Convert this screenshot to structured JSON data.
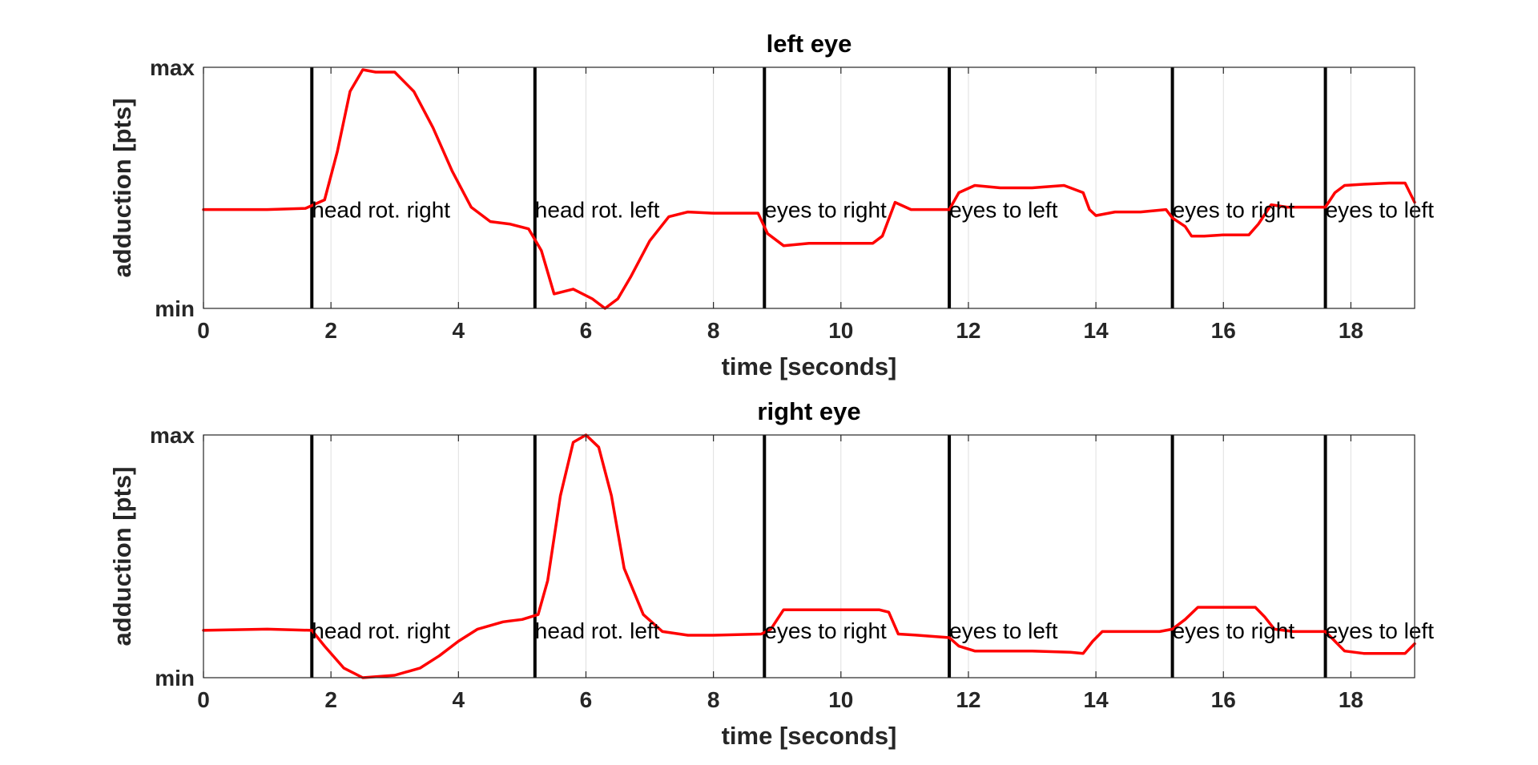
{
  "chart_data": [
    {
      "type": "line",
      "title": "left eye",
      "xlabel": "time [seconds]",
      "ylabel": "adduction [pts]",
      "xlim": [
        0,
        19
      ],
      "ylim": [
        0,
        1
      ],
      "xticks": [
        0,
        2,
        4,
        6,
        8,
        10,
        12,
        14,
        16,
        18
      ],
      "yticks": [
        {
          "value": 0,
          "label": "min"
        },
        {
          "value": 1,
          "label": "max"
        }
      ],
      "grid": "vertical",
      "series": [
        {
          "color": "#ff0000",
          "x": [
            0,
            1.0,
            1.6,
            1.9,
            2.1,
            2.3,
            2.5,
            2.7,
            3.0,
            3.3,
            3.6,
            3.9,
            4.2,
            4.5,
            4.8,
            5.1,
            5.3,
            5.5,
            5.8,
            6.1,
            6.3,
            6.5,
            6.7,
            7.0,
            7.3,
            7.6,
            8.0,
            8.7,
            8.85,
            9.1,
            9.5,
            10.0,
            10.5,
            10.65,
            10.85,
            11.1,
            11.7,
            11.85,
            12.1,
            12.5,
            13.0,
            13.5,
            13.8,
            13.9,
            14.0,
            14.3,
            14.7,
            15.1,
            15.2,
            15.4,
            15.5,
            15.7,
            16.0,
            16.4,
            16.55,
            16.75,
            17.0,
            17.6,
            17.75,
            17.9,
            18.2,
            18.6,
            18.85,
            19.0
          ],
          "y": [
            0.41,
            0.41,
            0.415,
            0.45,
            0.65,
            0.9,
            0.99,
            0.98,
            0.98,
            0.9,
            0.75,
            0.57,
            0.42,
            0.36,
            0.35,
            0.33,
            0.24,
            0.06,
            0.08,
            0.04,
            0.0,
            0.04,
            0.13,
            0.28,
            0.38,
            0.4,
            0.395,
            0.395,
            0.31,
            0.26,
            0.27,
            0.27,
            0.27,
            0.3,
            0.44,
            0.41,
            0.41,
            0.48,
            0.51,
            0.5,
            0.5,
            0.51,
            0.48,
            0.41,
            0.385,
            0.4,
            0.4,
            0.41,
            0.375,
            0.34,
            0.3,
            0.3,
            0.305,
            0.305,
            0.35,
            0.43,
            0.42,
            0.42,
            0.48,
            0.51,
            0.515,
            0.52,
            0.52,
            0.44
          ]
        }
      ],
      "events": [
        {
          "x": 1.7,
          "label": "head rot. right"
        },
        {
          "x": 5.2,
          "label": "head rot. left"
        },
        {
          "x": 8.8,
          "label": "eyes to right"
        },
        {
          "x": 11.7,
          "label": "eyes to left"
        },
        {
          "x": 15.2,
          "label": "eyes to right"
        },
        {
          "x": 17.6,
          "label": "eyes to left"
        }
      ],
      "annotation_y": 0.41
    },
    {
      "type": "line",
      "title": "right eye",
      "xlabel": "time [seconds]",
      "ylabel": "adduction [pts]",
      "xlim": [
        0,
        19
      ],
      "ylim": [
        0,
        1
      ],
      "xticks": [
        0,
        2,
        4,
        6,
        8,
        10,
        12,
        14,
        16,
        18
      ],
      "yticks": [
        {
          "value": 0,
          "label": "min"
        },
        {
          "value": 1,
          "label": "max"
        }
      ],
      "grid": "vertical",
      "series": [
        {
          "color": "#ff0000",
          "x": [
            0,
            1.0,
            1.7,
            1.9,
            2.2,
            2.5,
            3.0,
            3.4,
            3.7,
            4.0,
            4.3,
            4.7,
            5.0,
            5.25,
            5.4,
            5.6,
            5.8,
            6.0,
            6.2,
            6.4,
            6.6,
            6.9,
            7.2,
            7.6,
            8.0,
            8.75,
            8.9,
            9.1,
            9.5,
            10.0,
            10.6,
            10.75,
            10.9,
            11.2,
            11.7,
            11.85,
            12.1,
            12.5,
            13.0,
            13.6,
            13.8,
            13.95,
            14.1,
            14.5,
            15.0,
            15.2,
            15.4,
            15.6,
            16.0,
            16.5,
            16.65,
            16.8,
            17.1,
            17.6,
            17.75,
            17.9,
            18.2,
            18.6,
            18.85,
            19.0
          ],
          "y": [
            0.195,
            0.2,
            0.195,
            0.13,
            0.04,
            0.0,
            0.01,
            0.04,
            0.09,
            0.15,
            0.2,
            0.23,
            0.24,
            0.26,
            0.4,
            0.75,
            0.97,
            1.0,
            0.95,
            0.75,
            0.45,
            0.26,
            0.19,
            0.175,
            0.175,
            0.18,
            0.2,
            0.28,
            0.28,
            0.28,
            0.28,
            0.27,
            0.18,
            0.175,
            0.165,
            0.13,
            0.11,
            0.11,
            0.11,
            0.105,
            0.1,
            0.15,
            0.19,
            0.19,
            0.19,
            0.2,
            0.24,
            0.29,
            0.29,
            0.29,
            0.25,
            0.2,
            0.19,
            0.19,
            0.15,
            0.11,
            0.1,
            0.1,
            0.1,
            0.14
          ]
        }
      ],
      "events": [
        {
          "x": 1.7,
          "label": "head rot. right"
        },
        {
          "x": 5.2,
          "label": "head rot. left"
        },
        {
          "x": 8.8,
          "label": "eyes to right"
        },
        {
          "x": 11.7,
          "label": "eyes to left"
        },
        {
          "x": 15.2,
          "label": "eyes to right"
        },
        {
          "x": 17.6,
          "label": "eyes to left"
        }
      ],
      "annotation_y": 0.195
    }
  ]
}
